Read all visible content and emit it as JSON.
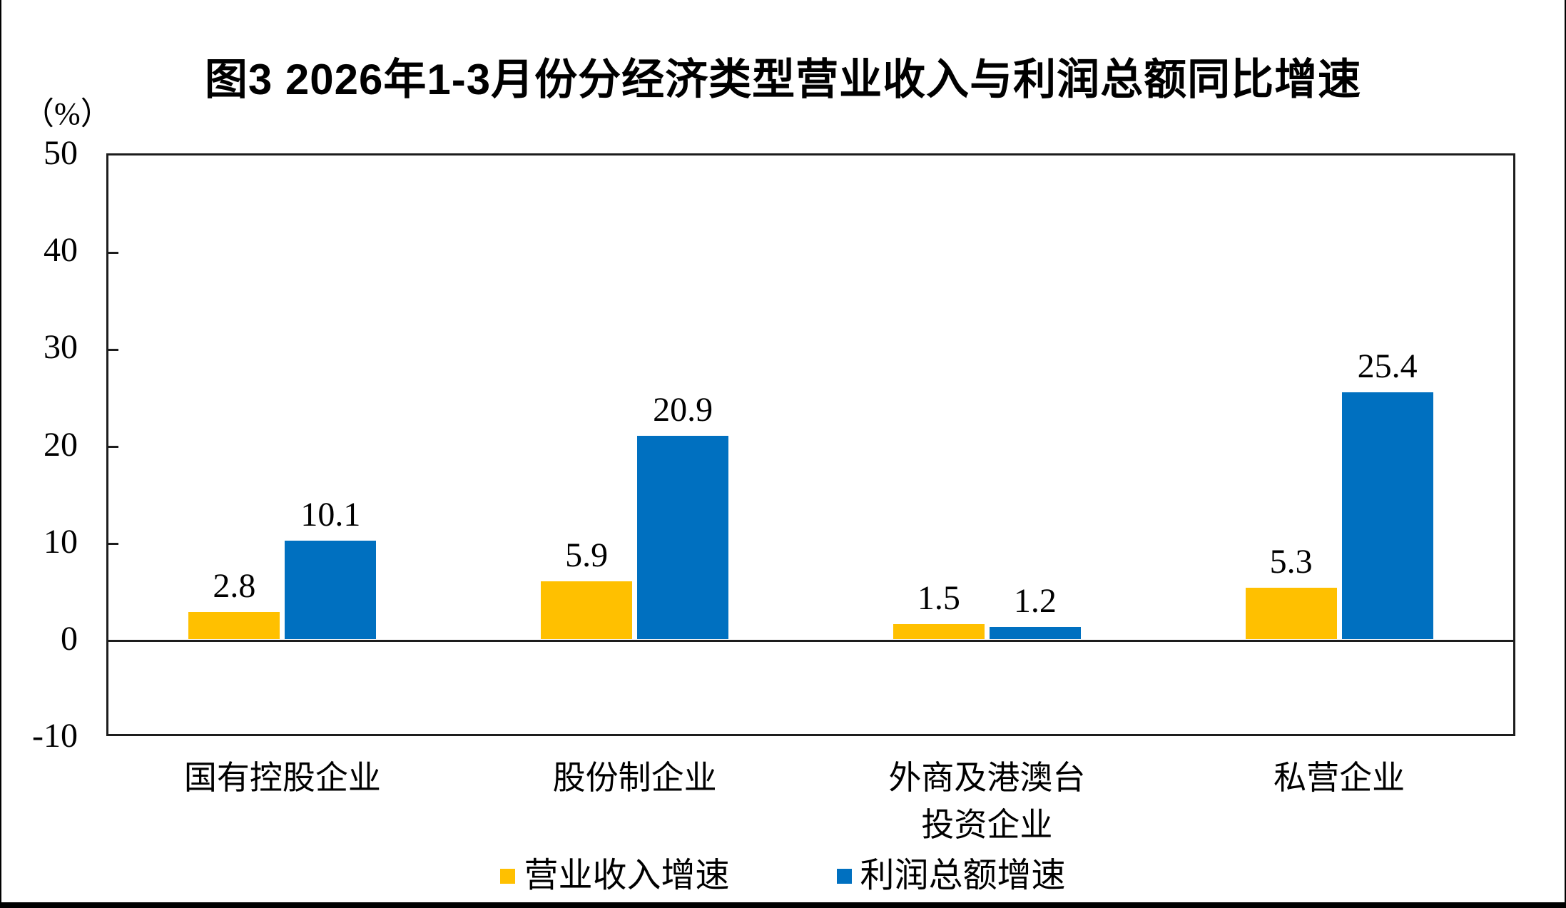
{
  "title": "图3 2026年1-3月份分经济类型营业收入与利润总额同比增速",
  "y_axis_unit": "（%）",
  "chart_data": {
    "type": "bar",
    "title": "图3 2026年1-3月份分经济类型营业收入与利润总额同比增速",
    "ylabel": "（%）",
    "ylim": [
      -10,
      50
    ],
    "yticks": [
      50,
      40,
      30,
      20,
      10,
      0,
      -10
    ],
    "grid": false,
    "legend_position": "bottom",
    "categories": [
      "国有控股企业",
      "股份制企业",
      "外商及港澳台\n投资企业",
      "私营企业"
    ],
    "series": [
      {
        "name": "营业收入增速",
        "color": "#FFC000",
        "values": [
          2.8,
          5.9,
          1.5,
          5.3
        ]
      },
      {
        "name": "利润总额增速",
        "color": "#0070C0",
        "values": [
          10.1,
          20.9,
          1.2,
          25.4
        ]
      }
    ],
    "value_labels": [
      [
        "2.8",
        "5.9",
        "1.5",
        "5.3"
      ],
      [
        "10.1",
        "20.9",
        "1.2",
        "25.4"
      ]
    ],
    "axis_color": "#1d1d1d"
  }
}
